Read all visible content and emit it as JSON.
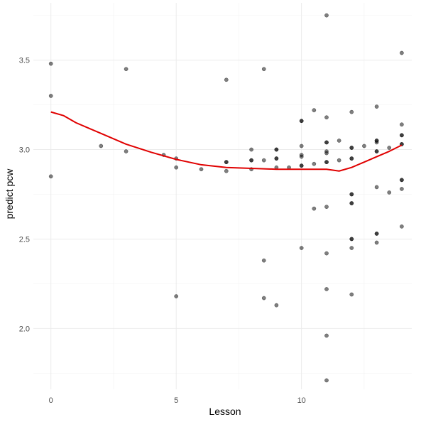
{
  "chart_data": {
    "type": "scatter",
    "title": "",
    "xlabel": "Lesson",
    "ylabel": "predict pcw",
    "xlim": [
      -0.7,
      14.4
    ],
    "ylim": [
      1.66,
      3.82
    ],
    "x_ticks": [
      0,
      5,
      10
    ],
    "x_tick_labels": [
      "0",
      "5",
      "10"
    ],
    "x_minor_ticks": [
      2.5,
      7.5,
      12.5
    ],
    "y_ticks": [
      2.0,
      2.5,
      3.0,
      3.5
    ],
    "y_tick_labels": [
      "2.0",
      "2.5",
      "3.0",
      "3.5"
    ],
    "y_minor_ticks": [
      1.75,
      2.25,
      2.75,
      3.25,
      3.75
    ],
    "grid": true,
    "legend": "none",
    "point_color": "#000000",
    "point_opacity": 0.5,
    "smooth_color": "#e00000",
    "points": [
      {
        "x": 0,
        "y": 3.48
      },
      {
        "x": 0,
        "y": 3.3
      },
      {
        "x": 0,
        "y": 2.85
      },
      {
        "x": 2,
        "y": 3.02
      },
      {
        "x": 3,
        "y": 3.45
      },
      {
        "x": 3,
        "y": 2.99
      },
      {
        "x": 4.5,
        "y": 2.97
      },
      {
        "x": 5,
        "y": 2.95
      },
      {
        "x": 5,
        "y": 2.9
      },
      {
        "x": 5,
        "y": 2.18
      },
      {
        "x": 6,
        "y": 2.89
      },
      {
        "x": 7,
        "y": 3.39
      },
      {
        "x": 7,
        "y": 2.93
      },
      {
        "x": 7,
        "y": 2.93
      },
      {
        "x": 7,
        "y": 2.88
      },
      {
        "x": 8,
        "y": 3.0
      },
      {
        "x": 8,
        "y": 2.94
      },
      {
        "x": 8,
        "y": 2.94
      },
      {
        "x": 8,
        "y": 2.89
      },
      {
        "x": 8.5,
        "y": 3.45
      },
      {
        "x": 8.5,
        "y": 2.94
      },
      {
        "x": 8.5,
        "y": 2.38
      },
      {
        "x": 8.5,
        "y": 2.17
      },
      {
        "x": 9,
        "y": 3.0
      },
      {
        "x": 9,
        "y": 3.0
      },
      {
        "x": 9,
        "y": 2.95
      },
      {
        "x": 9,
        "y": 2.95
      },
      {
        "x": 9,
        "y": 2.9
      },
      {
        "x": 9,
        "y": 2.13
      },
      {
        "x": 9.5,
        "y": 2.9
      },
      {
        "x": 10,
        "y": 3.16
      },
      {
        "x": 10,
        "y": 3.16
      },
      {
        "x": 10,
        "y": 3.02
      },
      {
        "x": 10,
        "y": 2.97
      },
      {
        "x": 10,
        "y": 2.96
      },
      {
        "x": 10,
        "y": 2.91
      },
      {
        "x": 10,
        "y": 2.91
      },
      {
        "x": 10,
        "y": 2.45
      },
      {
        "x": 10.5,
        "y": 3.22
      },
      {
        "x": 10.5,
        "y": 2.92
      },
      {
        "x": 10.5,
        "y": 2.67
      },
      {
        "x": 11,
        "y": 3.75
      },
      {
        "x": 11,
        "y": 3.18
      },
      {
        "x": 11,
        "y": 3.04
      },
      {
        "x": 11,
        "y": 3.04
      },
      {
        "x": 11,
        "y": 2.99
      },
      {
        "x": 11,
        "y": 2.98
      },
      {
        "x": 11,
        "y": 2.93
      },
      {
        "x": 11,
        "y": 2.93
      },
      {
        "x": 11,
        "y": 2.68
      },
      {
        "x": 11,
        "y": 2.42
      },
      {
        "x": 11,
        "y": 2.22
      },
      {
        "x": 11,
        "y": 1.96
      },
      {
        "x": 11,
        "y": 1.71
      },
      {
        "x": 11.5,
        "y": 3.05
      },
      {
        "x": 11.5,
        "y": 2.94
      },
      {
        "x": 12,
        "y": 3.21
      },
      {
        "x": 12,
        "y": 3.01
      },
      {
        "x": 12,
        "y": 3.01
      },
      {
        "x": 12,
        "y": 2.95
      },
      {
        "x": 12,
        "y": 2.95
      },
      {
        "x": 12,
        "y": 2.75
      },
      {
        "x": 12,
        "y": 2.75
      },
      {
        "x": 12,
        "y": 2.7
      },
      {
        "x": 12,
        "y": 2.7
      },
      {
        "x": 12,
        "y": 2.5
      },
      {
        "x": 12,
        "y": 2.5
      },
      {
        "x": 12,
        "y": 2.45
      },
      {
        "x": 12,
        "y": 2.19
      },
      {
        "x": 12.5,
        "y": 3.02
      },
      {
        "x": 13,
        "y": 3.24
      },
      {
        "x": 13,
        "y": 3.05
      },
      {
        "x": 13,
        "y": 3.05
      },
      {
        "x": 13,
        "y": 3.04
      },
      {
        "x": 13,
        "y": 2.99
      },
      {
        "x": 13,
        "y": 2.99
      },
      {
        "x": 13,
        "y": 2.79
      },
      {
        "x": 13,
        "y": 2.53
      },
      {
        "x": 13,
        "y": 2.53
      },
      {
        "x": 13,
        "y": 2.48
      },
      {
        "x": 13.5,
        "y": 3.01
      },
      {
        "x": 13.5,
        "y": 2.76
      },
      {
        "x": 14,
        "y": 3.54
      },
      {
        "x": 14,
        "y": 3.14
      },
      {
        "x": 14,
        "y": 3.08
      },
      {
        "x": 14,
        "y": 3.08
      },
      {
        "x": 14,
        "y": 3.03
      },
      {
        "x": 14,
        "y": 3.03
      },
      {
        "x": 14,
        "y": 2.83
      },
      {
        "x": 14,
        "y": 2.83
      },
      {
        "x": 14,
        "y": 2.78
      },
      {
        "x": 14,
        "y": 2.57
      }
    ],
    "smooth_line": [
      {
        "x": 0,
        "y": 3.21
      },
      {
        "x": 0.5,
        "y": 3.19
      },
      {
        "x": 1,
        "y": 3.15
      },
      {
        "x": 2,
        "y": 3.09
      },
      {
        "x": 3,
        "y": 3.03
      },
      {
        "x": 4,
        "y": 2.985
      },
      {
        "x": 5,
        "y": 2.945
      },
      {
        "x": 6,
        "y": 2.915
      },
      {
        "x": 7,
        "y": 2.9
      },
      {
        "x": 8,
        "y": 2.895
      },
      {
        "x": 9,
        "y": 2.89
      },
      {
        "x": 10,
        "y": 2.89
      },
      {
        "x": 11,
        "y": 2.89
      },
      {
        "x": 11.5,
        "y": 2.88
      },
      {
        "x": 12,
        "y": 2.9
      },
      {
        "x": 12.5,
        "y": 2.93
      },
      {
        "x": 13,
        "y": 2.96
      },
      {
        "x": 13.5,
        "y": 2.99
      },
      {
        "x": 14,
        "y": 3.025
      }
    ]
  }
}
